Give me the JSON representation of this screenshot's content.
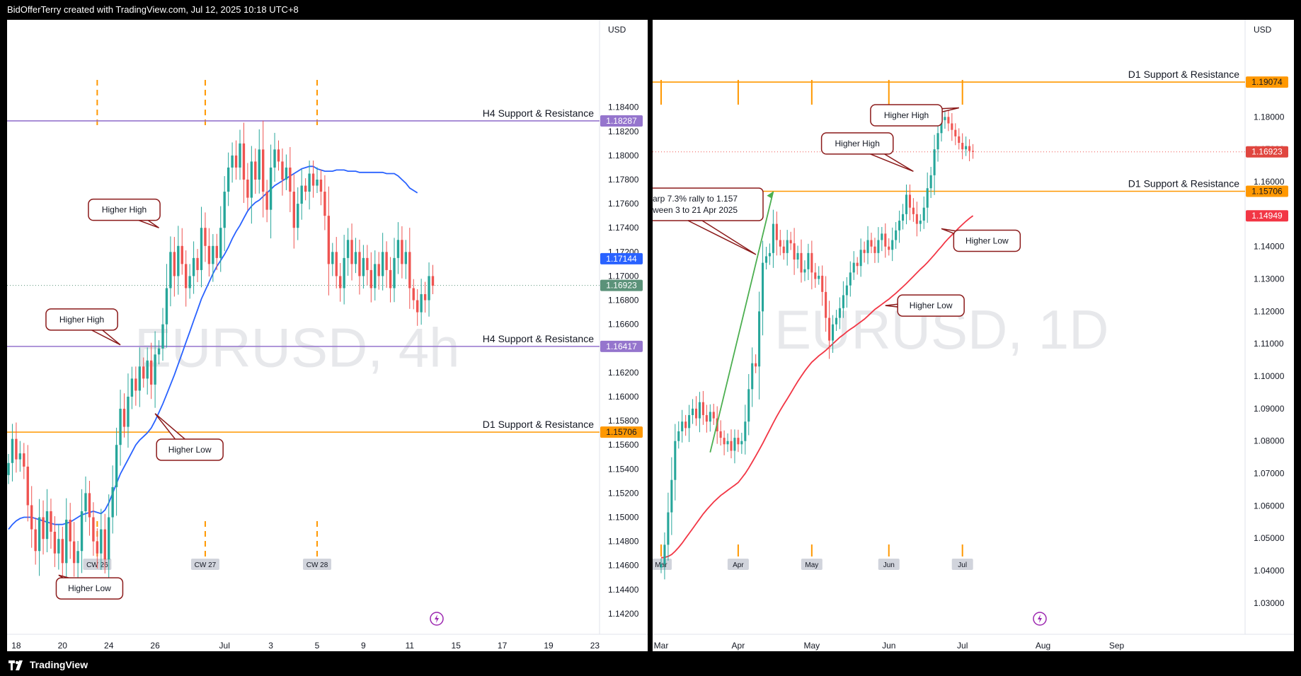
{
  "header": {
    "attribution": "BidOfferTerry created with TradingView.com, Jul 12, 2025 10:18 UTC+8"
  },
  "footer": {
    "brand": "TradingView"
  },
  "colors": {
    "up": "#26a69a",
    "down": "#ef5350",
    "h4_line": "#9575cd",
    "d1_line": "#ff9800",
    "ma_left": "#2962ff",
    "ma_right": "#f23645",
    "callout_border": "#8b1a1a",
    "arrow_green": "#4caf50",
    "price_label_green": "#5b9279",
    "price_label_red": "#e0463f",
    "last_price_line_red": "#ef5350"
  },
  "chart_data": [
    {
      "type": "candlestick",
      "symbol": "EURUSD",
      "watermark": "EURUSD, 4h",
      "currency": "USD",
      "ylim": [
        1.141,
        1.1875
      ],
      "y_ticks": [
        "1.18400",
        "1.18200",
        "1.18000",
        "1.17800",
        "1.17600",
        "1.17400",
        "1.17200",
        "1.17000",
        "1.16800",
        "1.16600",
        "1.16400",
        "1.16200",
        "1.16000",
        "1.15800",
        "1.15600",
        "1.15400",
        "1.15200",
        "1.15000",
        "1.14800",
        "1.14600",
        "1.14400",
        "1.14200"
      ],
      "x_ticks": [
        {
          "label": "18",
          "i": 2
        },
        {
          "label": "20",
          "i": 14
        },
        {
          "label": "24",
          "i": 26
        },
        {
          "label": "26",
          "i": 38
        },
        {
          "label": "Jul",
          "i": 56
        },
        {
          "label": "3",
          "i": 68
        },
        {
          "label": "5",
          "i": 80
        },
        {
          "label": "9",
          "i": 92
        },
        {
          "label": "11",
          "i": 104
        },
        {
          "label": "15",
          "i": 116
        },
        {
          "label": "17",
          "i": 128
        },
        {
          "label": "19",
          "i": 140
        },
        {
          "label": "23",
          "i": 152
        }
      ],
      "levels": [
        {
          "label": "H4 Support & Resistance",
          "price": 1.18287,
          "price_label": "1.18287",
          "color": "#9575cd"
        },
        {
          "label": "H4 Support & Resistance",
          "price": 1.16417,
          "price_label": "1.16417",
          "color": "#9575cd"
        },
        {
          "label": "D1 Support & Resistance",
          "price": 1.15706,
          "price_label": "1.15706",
          "color": "#ff9800"
        }
      ],
      "price_labels": [
        {
          "price": 1.17144,
          "text": "1.17144",
          "color": "#2962ff"
        },
        {
          "price": 1.16923,
          "text": "1.16923",
          "color": "#5b9279"
        }
      ],
      "last_price": 1.16923,
      "week_separators": [
        {
          "label": "CW 26",
          "i": 23
        },
        {
          "label": "CW 27",
          "i": 51
        },
        {
          "label": "CW 28",
          "i": 80
        }
      ],
      "annotations": [
        {
          "text": "Higher High",
          "box_price": 1.1755,
          "box_i": 30,
          "tip_price": 1.174,
          "tip_i": 39
        },
        {
          "text": "Higher High",
          "box_price": 1.1664,
          "box_i": 19,
          "tip_price": 1.1643,
          "tip_i": 29
        },
        {
          "text": "Higher Low",
          "box_price": 1.1556,
          "box_i": 47,
          "tip_price": 1.1586,
          "tip_i": 38
        },
        {
          "text": "Higher Low",
          "box_price": 1.1441,
          "box_i": 21,
          "tip_price": 1.1452,
          "tip_i": 13
        }
      ],
      "ma_series": {
        "name": "",
        "values": [
          1.149,
          1.1494,
          1.1497,
          1.1499,
          1.15,
          1.15,
          1.15,
          1.1499,
          1.1498,
          1.1497,
          1.1496,
          1.1495,
          1.1494,
          1.1494,
          1.1494,
          1.1495,
          1.1496,
          1.1498,
          1.15,
          1.1502,
          1.1503,
          1.1504,
          1.1505,
          1.1504,
          1.1503,
          1.1506,
          1.1512,
          1.152,
          1.1528,
          1.1536,
          1.1542,
          1.1548,
          1.1554,
          1.156,
          1.1564,
          1.1567,
          1.157,
          1.1574,
          1.158,
          1.1587,
          1.1594,
          1.1602,
          1.161,
          1.1618,
          1.1627,
          1.1636,
          1.1645,
          1.1654,
          1.1663,
          1.1672,
          1.1681,
          1.1688,
          1.1695,
          1.1702,
          1.1708,
          1.1713,
          1.1718,
          1.1724,
          1.1731,
          1.1737,
          1.1742,
          1.1748,
          1.1754,
          1.1758,
          1.1761,
          1.1763,
          1.1766,
          1.1769,
          1.1772,
          1.1775,
          1.1777,
          1.1779,
          1.1781,
          1.1783,
          1.1785,
          1.1787,
          1.1789,
          1.179,
          1.1791,
          1.1791,
          1.1789,
          1.1788,
          1.1787,
          1.1787,
          1.1787,
          1.1788,
          1.1788,
          1.1788,
          1.1787,
          1.1787,
          1.1787,
          1.1786,
          1.1786,
          1.1786,
          1.1786,
          1.1786,
          1.1786,
          1.1786,
          1.1785,
          1.1785,
          1.1785,
          1.1783,
          1.178,
          1.1777,
          1.1773,
          1.1771,
          1.1769
        ]
      },
      "closes": [
        1.1545,
        1.1565,
        1.1548,
        1.1553,
        1.1542,
        1.151,
        1.149,
        1.1472,
        1.15,
        1.1482,
        1.1505,
        1.1488,
        1.147,
        1.1482,
        1.1462,
        1.1498,
        1.148,
        1.1462,
        1.1472,
        1.1505,
        1.152,
        1.15,
        1.148,
        1.147,
        1.149,
        1.1465,
        1.15,
        1.1525,
        1.156,
        1.159,
        1.1575,
        1.16,
        1.1615,
        1.1605,
        1.1625,
        1.1615,
        1.163,
        1.161,
        1.1635,
        1.164,
        1.166,
        1.169,
        1.172,
        1.17,
        1.1725,
        1.171,
        1.169,
        1.17,
        1.1715,
        1.1705,
        1.174,
        1.1725,
        1.171,
        1.1725,
        1.1715,
        1.174,
        1.177,
        1.179,
        1.18,
        1.179,
        1.181,
        1.178,
        1.1765,
        1.1795,
        1.178,
        1.1805,
        1.177,
        1.1755,
        1.179,
        1.1805,
        1.1795,
        1.178,
        1.179,
        1.177,
        1.174,
        1.176,
        1.1775,
        1.177,
        1.1785,
        1.1775,
        1.178,
        1.177,
        1.175,
        1.171,
        1.172,
        1.17,
        1.169,
        1.1715,
        1.173,
        1.171,
        1.172,
        1.17,
        1.1715,
        1.1705,
        1.169,
        1.171,
        1.17,
        1.172,
        1.1705,
        1.169,
        1.1715,
        1.173,
        1.171,
        1.172,
        1.169,
        1.168,
        1.167,
        1.1685,
        1.168,
        1.17,
        1.1692
      ]
    },
    {
      "type": "candlestick",
      "symbol": "EURUSD",
      "watermark": "EURUSD, 1D",
      "currency": "USD",
      "ylim": [
        1.023,
        1.196
      ],
      "y_ticks": [
        "1.18000",
        "1.17000",
        "1.16000",
        "1.15000",
        "1.14000",
        "1.13000",
        "1.12000",
        "1.11000",
        "1.10000",
        "1.09000",
        "1.08000",
        "1.07000",
        "1.06000",
        "1.05000",
        "1.04000",
        "1.03000"
      ],
      "x_ticks": [
        {
          "label": "Mar",
          "i": 0
        },
        {
          "label": "Apr",
          "i": 22
        },
        {
          "label": "May",
          "i": 43
        },
        {
          "label": "Jun",
          "i": 65
        },
        {
          "label": "Jul",
          "i": 86
        },
        {
          "label": "Aug",
          "i": 109
        },
        {
          "label": "Sep",
          "i": 130
        }
      ],
      "levels": [
        {
          "label": "D1 Support & Resistance",
          "price": 1.19074,
          "price_label": "1.19074",
          "color": "#ff9800"
        },
        {
          "label": "D1 Support & Resistance",
          "price": 1.15706,
          "price_label": "1.15706",
          "color": "#ff9800"
        }
      ],
      "price_labels": [
        {
          "price": 1.16923,
          "text": "1.16923",
          "color": "#e0463f"
        },
        {
          "price": 1.14949,
          "text": "1.14949",
          "color": "#f23645"
        }
      ],
      "last_price": 1.16923,
      "month_markers": [
        {
          "label": "Mar",
          "i": 0
        },
        {
          "label": "Apr",
          "i": 22
        },
        {
          "label": "May",
          "i": 43
        },
        {
          "label": "Jun",
          "i": 65
        },
        {
          "label": "Jul",
          "i": 86
        }
      ],
      "rally_note": {
        "line1": "arp 7.3% rally to 1.157",
        "line2": "ween 3 to 21 Apr 2025"
      },
      "annotations": [
        {
          "text": "Higher High",
          "box_price": 1.1805,
          "box_i": 70,
          "tip_price": 1.1828,
          "tip_i": 85
        },
        {
          "text": "Higher High",
          "box_price": 1.1718,
          "box_i": 56,
          "tip_price": 1.1632,
          "tip_i": 72
        },
        {
          "text": "Higher Low",
          "box_price": 1.1418,
          "box_i": 93,
          "tip_price": 1.1455,
          "tip_i": 80
        },
        {
          "text": "Higher Low",
          "box_price": 1.1218,
          "box_i": 77,
          "tip_price": 1.1218,
          "tip_i": 64
        }
      ],
      "ma_series": {
        "name": "",
        "values": [
          1.044,
          1.0441,
          1.0444,
          1.045,
          1.046,
          1.0472,
          1.0485,
          1.05,
          1.0515,
          1.053,
          1.0545,
          1.056,
          1.0575,
          1.0588,
          1.06,
          1.0612,
          1.0622,
          1.0632,
          1.064,
          1.0648,
          1.0656,
          1.0664,
          1.0672,
          1.0686,
          1.07,
          1.0717,
          1.0735,
          1.0754,
          1.0773,
          1.0793,
          1.0814,
          1.0835,
          1.0856,
          1.0876,
          1.0895,
          1.0913,
          1.093,
          1.0948,
          1.0966,
          1.0984,
          1.1,
          1.1016,
          1.103,
          1.1043,
          1.1053,
          1.1063,
          1.1071,
          1.108,
          1.109,
          1.11,
          1.111,
          1.112,
          1.1128,
          1.1137,
          1.1145,
          1.1152,
          1.116,
          1.1168,
          1.1176,
          1.1186,
          1.1196,
          1.1206,
          1.1214,
          1.1222,
          1.123,
          1.1238,
          1.1247,
          1.1256,
          1.1266,
          1.1276,
          1.1286,
          1.1297,
          1.1308,
          1.1319,
          1.133,
          1.134,
          1.1351,
          1.1363,
          1.1375,
          1.1388,
          1.14,
          1.1413,
          1.1425,
          1.1436,
          1.1447,
          1.1458,
          1.1468,
          1.1478,
          1.1487,
          1.1495
        ]
      },
      "closes": [
        1.042,
        1.048,
        1.058,
        1.068,
        1.08,
        1.083,
        1.086,
        1.084,
        1.088,
        1.09,
        1.087,
        1.092,
        1.088,
        1.086,
        1.089,
        1.087,
        1.083,
        1.081,
        1.079,
        1.08,
        1.077,
        1.081,
        1.079,
        1.08,
        1.086,
        1.096,
        1.104,
        1.103,
        1.12,
        1.135,
        1.137,
        1.138,
        1.147,
        1.142,
        1.14,
        1.138,
        1.142,
        1.141,
        1.136,
        1.138,
        1.132,
        1.133,
        1.138,
        1.132,
        1.13,
        1.131,
        1.126,
        1.118,
        1.111,
        1.116,
        1.118,
        1.121,
        1.125,
        1.128,
        1.132,
        1.135,
        1.134,
        1.139,
        1.138,
        1.142,
        1.14,
        1.138,
        1.142,
        1.144,
        1.14,
        1.139,
        1.142,
        1.145,
        1.148,
        1.15,
        1.156,
        1.152,
        1.15,
        1.147,
        1.148,
        1.152,
        1.158,
        1.162,
        1.17,
        1.175,
        1.179,
        1.18,
        1.178,
        1.176,
        1.174,
        1.172,
        1.17,
        1.171,
        1.1695,
        1.1692
      ]
    }
  ]
}
